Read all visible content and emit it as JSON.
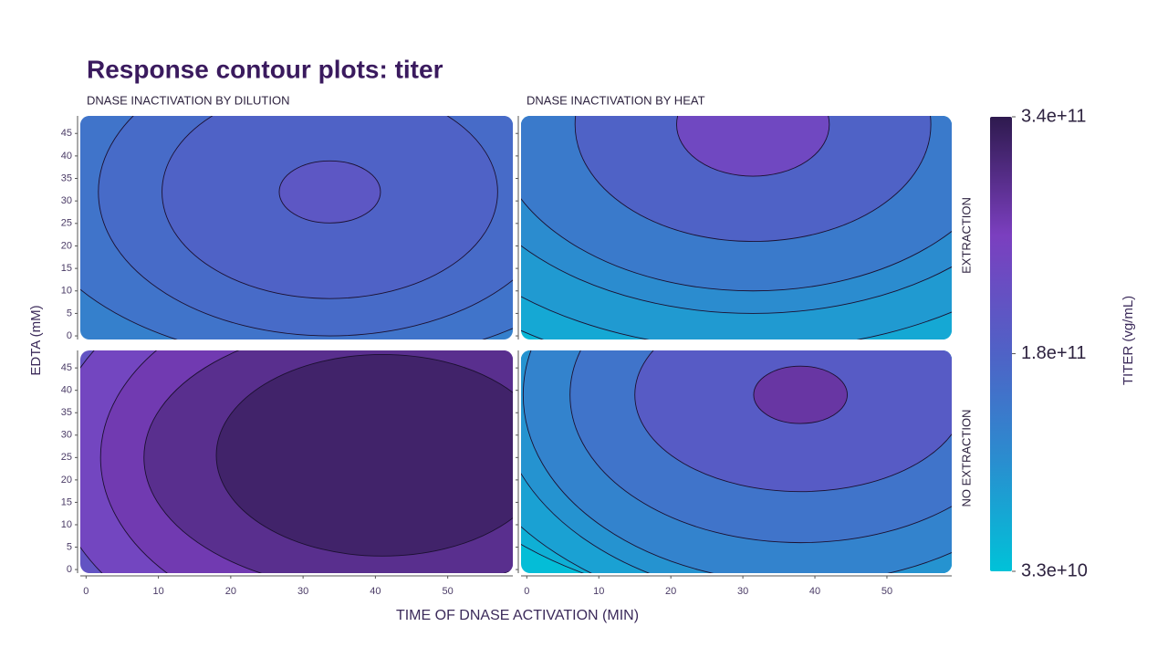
{
  "chart_data": {
    "type": "contour",
    "title": "Response contour plots: titer",
    "x_label": "TIME OF DNASE ACTIVATION (MIN)",
    "y_label": "EDTA (mM)",
    "column_labels": [
      "DNASE INACTIVATION BY DILUTION",
      "DNASE INACTIVATION BY HEAT"
    ],
    "row_labels": [
      "EXTRACTION",
      "NO EXTRACTION"
    ],
    "xlim": [
      -0.8,
      59
    ],
    "xticks": [
      0,
      10,
      20,
      30,
      40,
      50
    ],
    "ylim": [
      -0.8,
      48.9
    ],
    "yticks": [
      0,
      5,
      10,
      15,
      20,
      25,
      30,
      35,
      40,
      45
    ],
    "colorbar": {
      "label": "TITER (vg/mL)",
      "lim": [
        33000000000,
        340000000000
      ],
      "ticks": [
        {
          "value": 340000000000,
          "label": "3.4e+11"
        },
        {
          "value": 180000000000,
          "label": "1.8e+11"
        },
        {
          "value": 33000000000,
          "label": "3.3e+10"
        }
      ],
      "colorscale": [
        [
          33000000000,
          "#00c2d8"
        ],
        [
          110000000000,
          "#2b8ccf"
        ],
        [
          180000000000,
          "#4f62c6"
        ],
        [
          260000000000,
          "#7b3fbf"
        ],
        [
          340000000000,
          "#2e1a4e"
        ]
      ]
    },
    "panels": [
      [
        {
          "base": 130000000000,
          "contours": [
            {
              "level": 150000000000,
              "cx": 33.7,
              "cy": 32,
              "rx": 42,
              "ry": 38
            },
            {
              "level": 165000000000,
              "cx": 33.7,
              "cy": 32,
              "rx": 32,
              "ry": 32
            },
            {
              "level": 180000000000,
              "cx": 33.7,
              "cy": 32,
              "rx": 23.2,
              "ry": 23.7
            },
            {
              "level": 205000000000,
              "cx": 33.7,
              "cy": 32,
              "rx": 7,
              "ry": 6.9
            }
          ]
        },
        {
          "base": 50000000000,
          "contours": [
            {
              "level": 70000000000,
              "cx": 31.4,
              "cy": 47,
              "rx": 56,
              "ry": 56
            },
            {
              "level": 90000000000,
              "cx": 31.4,
              "cy": 47,
              "rx": 50,
              "ry": 50
            },
            {
              "level": 110000000000,
              "cx": 31.4,
              "cy": 47,
              "rx": 42,
              "ry": 42
            },
            {
              "level": 140000000000,
              "cx": 31.4,
              "cy": 47,
              "rx": 36,
              "ry": 37
            },
            {
              "level": 180000000000,
              "cx": 31.4,
              "cy": 47,
              "rx": 24.7,
              "ry": 26
            },
            {
              "level": 240000000000,
              "cx": 31.4,
              "cy": 47,
              "rx": 10.6,
              "ry": 11.5
            }
          ]
        }
      ],
      [
        {
          "base": 215000000000,
          "contours": [
            {
              "level": 245000000000,
              "cx": 41,
              "cy": 25,
              "rx": 46,
              "ry": 48
            },
            {
              "level": 270000000000,
              "cx": 41,
              "cy": 25,
              "rx": 39,
              "ry": 40
            },
            {
              "level": 295000000000,
              "cx": 41,
              "cy": 25,
              "rx": 33,
              "ry": 30
            },
            {
              "level": 320000000000,
              "cx": 41,
              "cy": 25.5,
              "rx": 23,
              "ry": 22.5
            }
          ]
        },
        {
          "base": 40000000000,
          "contours": [
            {
              "level": 60000000000,
              "cx": 38,
              "cy": 39,
              "rx": 54,
              "ry": 48
            },
            {
              "level": 80000000000,
              "cx": 38,
              "cy": 39,
              "rx": 48,
              "ry": 50
            },
            {
              "level": 100000000000,
              "cx": 38,
              "cy": 39,
              "rx": 42,
              "ry": 46
            },
            {
              "level": 125000000000,
              "cx": 38,
              "cy": 39,
              "rx": 38.5,
              "ry": 42
            },
            {
              "level": 150000000000,
              "cx": 38,
              "cy": 39,
              "rx": 32,
              "ry": 33
            },
            {
              "level": 195000000000,
              "cx": 38,
              "cy": 39,
              "rx": 23,
              "ry": 21.6
            },
            {
              "level": 280000000000,
              "cx": 38,
              "cy": 39,
              "rx": 6.5,
              "ry": 6.4
            }
          ]
        }
      ]
    ]
  }
}
